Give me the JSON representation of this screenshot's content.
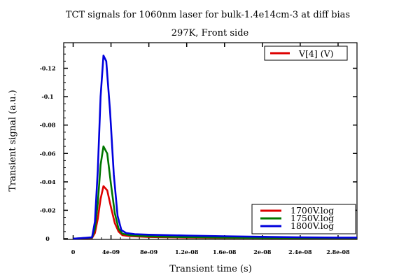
{
  "chart_data": {
    "type": "line",
    "title": "TCT signals for 1060nm laser for bulk-1.4e14cm-3 at diff bias",
    "subtitle": "297K, Front side",
    "xlabel": "Transient time (s)",
    "ylabel": "Transient signal (a.u.)",
    "xlim": [
      -1e-09,
      3e-08
    ],
    "ylim": [
      0.0005,
      -0.138
    ],
    "x_ticks": [
      0,
      4e-09,
      8e-09,
      1.2e-08,
      1.6e-08,
      2e-08,
      2.4e-08,
      2.8e-08
    ],
    "x_tick_labels": [
      "0",
      "4e-09",
      "8e-09",
      "1.2e-08",
      "1.6e-08",
      "2e-08",
      "2.4e-08",
      "2.8e-08"
    ],
    "y_ticks": [
      0,
      -0.02,
      -0.04,
      -0.06,
      -0.08,
      -0.1,
      -0.12
    ],
    "y_tick_labels": [
      "0",
      "-0.02",
      "-0.04",
      "-0.06",
      "-0.08",
      "-0.1",
      "-0.12"
    ],
    "top_legend": {
      "label": "V[4] (V)",
      "color": "#dd0000"
    },
    "legend_position": "bottom-right",
    "series": [
      {
        "name": "1700V.log",
        "color": "#dd0000",
        "x": [
          0,
          2e-09,
          2.3e-09,
          2.6e-09,
          2.9e-09,
          3.2e-09,
          3.6e-09,
          4e-09,
          4.4e-09,
          4.8e-09,
          5.2e-09,
          6e-09,
          8e-09,
          1.2e-08,
          1.6e-08,
          2e-08,
          2.4e-08,
          2.8e-08,
          3e-08
        ],
        "y": [
          0,
          -0.0005,
          -0.004,
          -0.014,
          -0.028,
          -0.037,
          -0.034,
          -0.022,
          -0.011,
          -0.005,
          -0.0025,
          -0.0018,
          -0.0012,
          -0.0008,
          -0.0006,
          -0.0005,
          -0.0004,
          -0.0003,
          -0.0003
        ]
      },
      {
        "name": "1750V.log",
        "color": "#007700",
        "x": [
          0,
          2e-09,
          2.3e-09,
          2.6e-09,
          2.9e-09,
          3.2e-09,
          3.6e-09,
          4e-09,
          4.4e-09,
          4.8e-09,
          5.2e-09,
          6e-09,
          8e-09,
          1.2e-08,
          1.6e-08,
          2e-08,
          2.4e-08,
          2.8e-08,
          3e-08
        ],
        "y": [
          0,
          -0.0008,
          -0.007,
          -0.025,
          -0.052,
          -0.065,
          -0.06,
          -0.038,
          -0.018,
          -0.007,
          -0.0035,
          -0.0024,
          -0.0016,
          -0.0011,
          -0.0008,
          -0.0006,
          -0.0005,
          -0.0004,
          -0.0004
        ]
      },
      {
        "name": "1800V.log",
        "color": "#0000dd",
        "x": [
          0,
          2e-09,
          2.3e-09,
          2.6e-09,
          2.9e-09,
          3.2e-09,
          3.5e-09,
          3.9e-09,
          4.3e-09,
          4.7e-09,
          5.1e-09,
          5.6e-09,
          6.5e-09,
          8e-09,
          1.2e-08,
          1.6e-08,
          2e-08,
          2.4e-08,
          2.8e-08,
          3e-08
        ],
        "y": [
          0,
          -0.001,
          -0.012,
          -0.048,
          -0.1,
          -0.129,
          -0.125,
          -0.09,
          -0.045,
          -0.016,
          -0.006,
          -0.004,
          -0.0032,
          -0.0028,
          -0.0022,
          -0.0017,
          -0.0013,
          -0.001,
          -0.0008,
          -0.0008
        ]
      }
    ]
  }
}
